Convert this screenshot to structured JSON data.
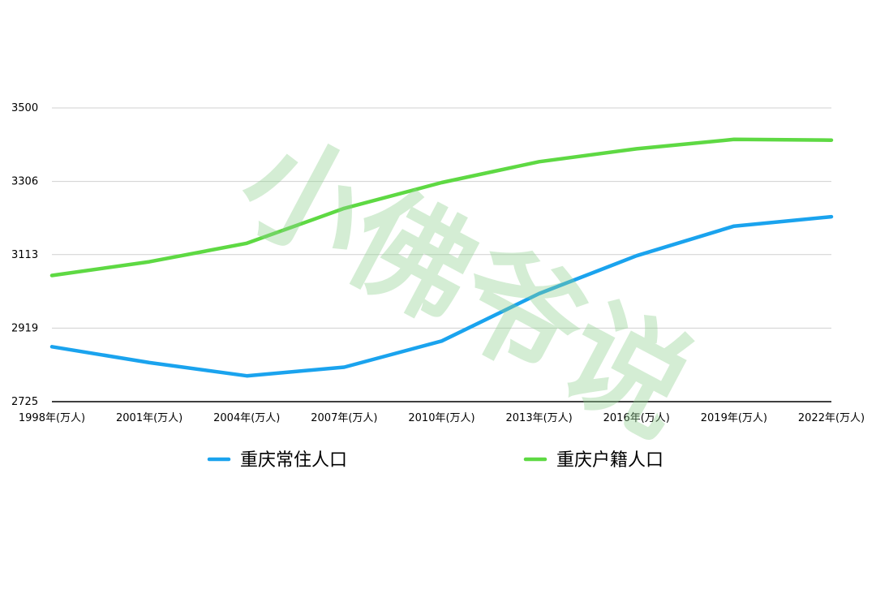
{
  "chart_data": {
    "type": "line",
    "title": "",
    "xlabel": "",
    "ylabel": "",
    "categories": [
      "1998年(万人)",
      "2001年(万人)",
      "2004年(万人)",
      "2007年(万人)",
      "2010年(万人)",
      "2013年(万人)",
      "2016年(万人)",
      "2019年(万人)",
      "2022年(万人)"
    ],
    "x": [
      1998,
      2001,
      2004,
      2007,
      2010,
      2013,
      2016,
      2019,
      2022
    ],
    "ylim": [
      2725,
      3500
    ],
    "yticks": [
      2725,
      2919,
      3113,
      3306,
      3500
    ],
    "grid": true,
    "legend_position": "bottom",
    "series": [
      {
        "name": "重庆常住人口",
        "color": "#1aa3ee",
        "values": [
          2870,
          2828,
          2793,
          2816,
          2885,
          3010,
          3110,
          3188,
          3213
        ]
      },
      {
        "name": "重庆户籍人口",
        "color": "#5ed943",
        "values": [
          3058,
          3094,
          3143,
          3235,
          3303,
          3358,
          3392,
          3417,
          3415
        ]
      }
    ]
  },
  "watermark": {
    "text": "小佛爷说",
    "color": "#8fd18f"
  }
}
